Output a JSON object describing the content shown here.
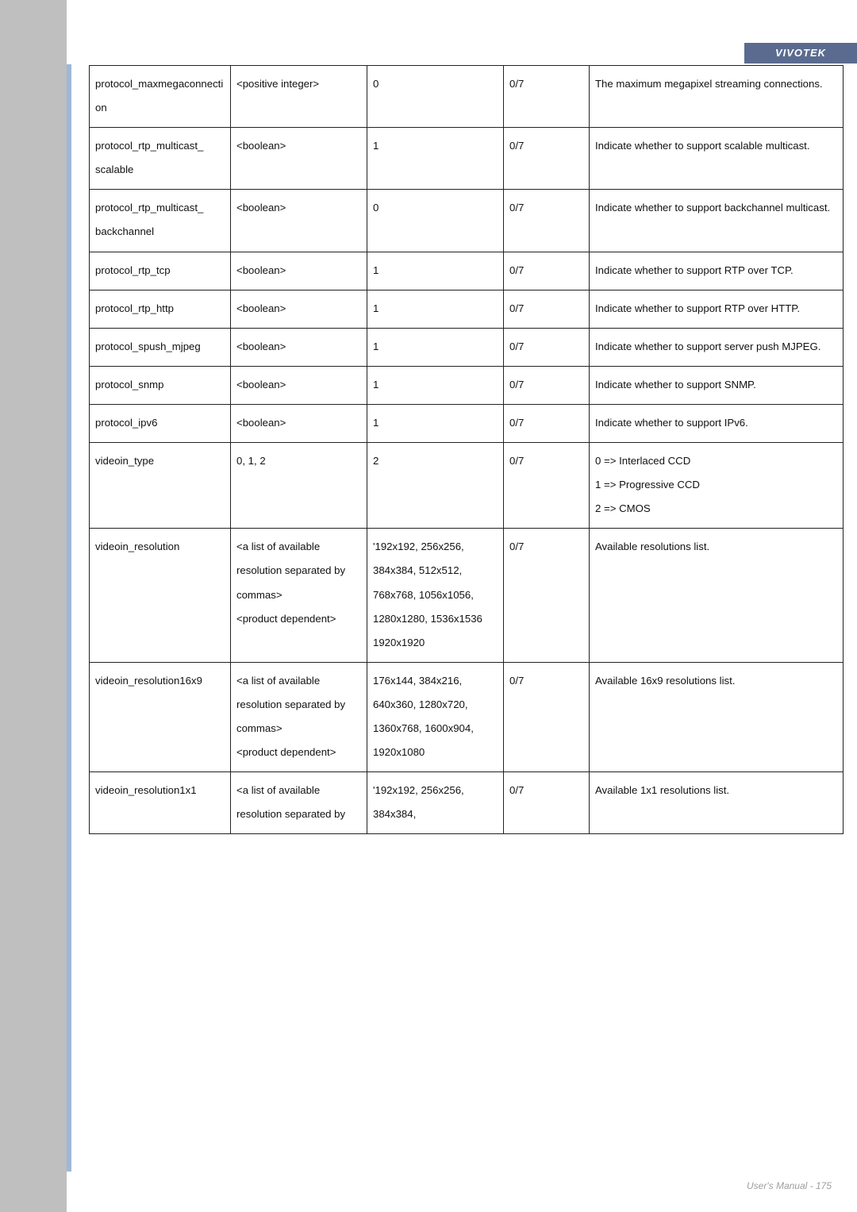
{
  "brand": "VIVOTEK",
  "footer": "User's Manual - 175",
  "rows": [
    {
      "param": "protocol_maxmegaconnection",
      "type": "<positive integer>",
      "default": "0",
      "sec": "0/7",
      "desc": "The maximum megapixel streaming connections."
    },
    {
      "param": "protocol_rtp_multicast_\nscalable",
      "type": "<boolean>",
      "default": "1",
      "sec": "0/7",
      "desc": "Indicate whether to support scalable multicast."
    },
    {
      "param": "protocol_rtp_multicast_\nbackchannel",
      "type": "<boolean>",
      "default": "0",
      "sec": "0/7",
      "desc": "Indicate whether to support backchannel multicast."
    },
    {
      "param": "protocol_rtp_tcp",
      "type": "<boolean>",
      "default": "1",
      "sec": "0/7",
      "desc": "Indicate whether to support RTP over TCP."
    },
    {
      "param": "protocol_rtp_http",
      "type": "<boolean>",
      "default": "1",
      "sec": "0/7",
      "desc": "Indicate whether to support RTP over HTTP."
    },
    {
      "param": "protocol_spush_mjpeg",
      "type": "<boolean>",
      "default": "1",
      "sec": "0/7",
      "desc": "Indicate whether to support server push MJPEG."
    },
    {
      "param": "protocol_snmp",
      "type": "<boolean>",
      "default": "1",
      "sec": "0/7",
      "desc": "Indicate whether to support SNMP."
    },
    {
      "param": "protocol_ipv6",
      "type": "<boolean>",
      "default": "1",
      "sec": "0/7",
      "desc": "Indicate whether to support IPv6."
    },
    {
      "param": "videoin_type",
      "type": "0, 1, 2",
      "default": "2",
      "sec": "0/7",
      "desc": "0 => Interlaced CCD\n1 => Progressive CCD\n2 => CMOS"
    },
    {
      "param": "videoin_resolution",
      "type": "<a list of available resolution separated by commas>\n<product dependent>",
      "default": "'192x192, 256x256, 384x384, 512x512, 768x768, 1056x1056, 1280x1280, 1536x1536 1920x1920",
      "sec": "0/7",
      "desc": "Available resolutions list."
    },
    {
      "param": "videoin_resolution16x9",
      "type": "<a list of available resolution separated by commas>\n<product dependent>",
      "default": "176x144, 384x216, 640x360, 1280x720, 1360x768, 1600x904, 1920x1080",
      "sec": "0/7",
      "desc": "Available 16x9 resolutions list."
    },
    {
      "param": "videoin_resolution1x1",
      "type": "<a list of available resolution separated by",
      "default": "'192x192, 256x256, 384x384,",
      "sec": "0/7",
      "desc": "Available 1x1 resolutions list."
    }
  ]
}
